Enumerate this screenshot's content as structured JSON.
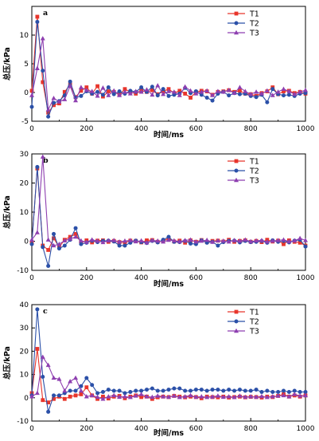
{
  "chart_data": [
    {
      "type": "line",
      "panel_label": "a",
      "xlabel": "时间/ms",
      "ylabel": "总压/kPa",
      "xlim": [
        0,
        1000
      ],
      "ylim": [
        -5,
        15
      ],
      "xticks": [
        0,
        200,
        400,
        600,
        800,
        1000
      ],
      "yticks": [
        -5,
        0,
        5,
        10
      ],
      "legend_position": "top-right",
      "series": [
        {
          "name": "T1",
          "color": "#e8352b",
          "marker": "square",
          "x": [
            0,
            20,
            40,
            60,
            80,
            100,
            120,
            140,
            160,
            180,
            200,
            220,
            240,
            260,
            280,
            300,
            320,
            340,
            360,
            380,
            400,
            420,
            440,
            460,
            480,
            500,
            520,
            540,
            560,
            580,
            600,
            620,
            640,
            660,
            680,
            700,
            720,
            740,
            760,
            780,
            800,
            820,
            840,
            860,
            880,
            900,
            920,
            940,
            960,
            980,
            1000
          ],
          "y": [
            0.3,
            13.2,
            1.8,
            -3.5,
            -2.2,
            -1.9,
            0.1,
            1.4,
            -0.8,
            0.3,
            0.9,
            -0.2,
            1.1,
            -0.7,
            0.2,
            0.1,
            -0.4,
            0.6,
            0.1,
            -0.2,
            0.3,
            0.1,
            0.4,
            -0.3,
            0.2,
            0.6,
            -0.1,
            0.3,
            -0.2,
            -0.9,
            0.1,
            0.3,
            0.2,
            -0.4,
            0.1,
            0.2,
            0.4,
            0.1,
            0.3,
            -0.2,
            -0.3,
            -0.6,
            -0.1,
            0.2,
            0.9,
            -0.3,
            0.2,
            0.3,
            -0.1,
            0.1,
            -0.2
          ]
        },
        {
          "name": "T2",
          "color": "#2b50a8",
          "marker": "circle",
          "x": [
            0,
            20,
            40,
            60,
            80,
            100,
            120,
            140,
            160,
            180,
            200,
            220,
            240,
            260,
            280,
            300,
            320,
            340,
            360,
            380,
            400,
            420,
            440,
            460,
            480,
            500,
            520,
            540,
            560,
            580,
            600,
            620,
            640,
            660,
            680,
            700,
            720,
            740,
            760,
            780,
            800,
            820,
            840,
            860,
            880,
            900,
            920,
            940,
            960,
            980,
            1000
          ],
          "y": [
            -2.5,
            12.3,
            3.8,
            -4.2,
            -1.8,
            -1.5,
            -0.5,
            1.9,
            -0.9,
            -0.6,
            0.2,
            -0.2,
            0.1,
            -0.4,
            0.9,
            -0.3,
            0.2,
            -0.2,
            0.3,
            0.1,
            0.9,
            0.1,
            1.0,
            -0.5,
            0.6,
            -0.6,
            -0.4,
            -0.2,
            0.8,
            -0.1,
            0.2,
            -0.4,
            -0.9,
            -1.4,
            -0.2,
            0.1,
            -0.5,
            -0.1,
            -0.3,
            -0.2,
            -0.6,
            -0.8,
            -0.4,
            -1.7,
            0.6,
            -0.3,
            -0.5,
            -0.4,
            -0.6,
            -0.2,
            -0.1
          ]
        },
        {
          "name": "T3",
          "color": "#8e3fb0",
          "marker": "triangle",
          "x": [
            0,
            20,
            40,
            60,
            80,
            100,
            120,
            140,
            160,
            180,
            200,
            220,
            240,
            260,
            280,
            300,
            320,
            340,
            360,
            380,
            400,
            420,
            440,
            460,
            480,
            500,
            520,
            540,
            560,
            580,
            600,
            620,
            640,
            660,
            680,
            700,
            720,
            740,
            760,
            780,
            800,
            820,
            840,
            860,
            880,
            900,
            920,
            940,
            960,
            980,
            1000
          ],
          "y": [
            -0.5,
            4.2,
            9.4,
            -3.0,
            -1.0,
            -1.6,
            -1.2,
            1.1,
            -1.4,
            0.9,
            0.4,
            0.2,
            -0.6,
            0.8,
            -0.5,
            0.3,
            -0.5,
            0.1,
            -0.2,
            0.2,
            0.1,
            0.5,
            -0.4,
            1.2,
            -0.3,
            0.2,
            0.1,
            -0.5,
            1.0,
            0.3,
            -0.2,
            0.1,
            0.3,
            -0.5,
            0.2,
            0.1,
            0.4,
            -0.1,
            0.9,
            0.2,
            -0.3,
            0.1,
            -0.2,
            0.3,
            -0.5,
            0.1,
            0.6,
            0.2,
            -0.3,
            0.1,
            0.4
          ]
        }
      ]
    },
    {
      "type": "line",
      "panel_label": "b",
      "xlabel": "时间/ms",
      "ylabel": "总压/kPa",
      "xlim": [
        0,
        1000
      ],
      "ylim": [
        -10,
        30
      ],
      "xticks": [
        0,
        200,
        400,
        600,
        800,
        1000
      ],
      "yticks": [
        -10,
        0,
        10,
        20,
        30
      ],
      "legend_position": "top-right",
      "series": [
        {
          "name": "T1",
          "color": "#e8352b",
          "marker": "square",
          "x": [
            0,
            20,
            40,
            60,
            80,
            100,
            120,
            140,
            160,
            180,
            200,
            220,
            240,
            260,
            280,
            300,
            320,
            340,
            360,
            380,
            400,
            420,
            440,
            460,
            480,
            500,
            520,
            540,
            560,
            580,
            600,
            620,
            640,
            660,
            680,
            700,
            720,
            740,
            760,
            780,
            800,
            820,
            840,
            860,
            880,
            900,
            920,
            940,
            960,
            980,
            1000
          ],
          "y": [
            -0.5,
            25.0,
            -1.5,
            -3.0,
            1.0,
            -2.0,
            0.5,
            1.5,
            2.5,
            -0.5,
            0.3,
            -0.4,
            0.2,
            0.3,
            -0.2,
            0.1,
            -0.3,
            -0.5,
            0.2,
            0.1,
            -0.4,
            0.3,
            0.4,
            -0.2,
            0.1,
            1.0,
            -0.1,
            0.2,
            -0.5,
            0.3,
            -0.2,
            0.4,
            -0.3,
            0.1,
            0.2,
            -0.1,
            0.5,
            -0.2,
            0.1,
            0.3,
            -0.2,
            0.1,
            -0.3,
            0.5,
            -0.1,
            0.2,
            -1.0,
            0.3,
            -0.2,
            -0.5,
            -1.5
          ]
        },
        {
          "name": "T2",
          "color": "#2b50a8",
          "marker": "circle",
          "x": [
            0,
            20,
            40,
            60,
            80,
            100,
            120,
            140,
            160,
            180,
            200,
            220,
            240,
            260,
            280,
            300,
            320,
            340,
            360,
            380,
            400,
            420,
            440,
            460,
            480,
            500,
            520,
            540,
            560,
            580,
            600,
            620,
            640,
            660,
            680,
            700,
            720,
            740,
            760,
            780,
            800,
            820,
            840,
            860,
            880,
            900,
            920,
            940,
            960,
            980,
            1000
          ],
          "y": [
            -1.0,
            25.5,
            -2.0,
            -8.5,
            2.5,
            -2.5,
            -1.5,
            0.5,
            4.5,
            -1.0,
            -0.5,
            0.2,
            -0.3,
            0.1,
            0.2,
            -0.1,
            -1.5,
            -1.5,
            -0.5,
            0.2,
            -0.3,
            -0.6,
            0.1,
            -0.4,
            0.5,
            1.5,
            -0.2,
            -0.3,
            0.1,
            -0.8,
            -1.0,
            0.3,
            -0.5,
            -0.2,
            -1.5,
            -0.3,
            0.1,
            0.2,
            -0.4,
            0.1,
            -0.3,
            -0.2,
            0.1,
            -0.5,
            0.3,
            -0.2,
            0.1,
            -0.4,
            0.2,
            0.5,
            -1.8
          ]
        },
        {
          "name": "T3",
          "color": "#8e3fb0",
          "marker": "triangle",
          "x": [
            0,
            20,
            40,
            60,
            80,
            100,
            120,
            140,
            160,
            180,
            200,
            220,
            240,
            260,
            280,
            300,
            320,
            340,
            360,
            380,
            400,
            420,
            440,
            460,
            480,
            500,
            520,
            540,
            560,
            580,
            600,
            620,
            640,
            660,
            680,
            700,
            720,
            740,
            760,
            780,
            800,
            820,
            840,
            860,
            880,
            900,
            920,
            940,
            960,
            980,
            1000
          ],
          "y": [
            0.5,
            3.0,
            29.0,
            0.5,
            -1.5,
            -1.0,
            0.2,
            0.8,
            1.5,
            0.2,
            -0.3,
            0.5,
            0.1,
            -0.4,
            0.2,
            0.3,
            -0.2,
            0.1,
            0.3,
            -0.1,
            0.2,
            -0.5,
            0.3,
            0.1,
            -0.2,
            0.4,
            0.2,
            -0.1,
            0.3,
            0.5,
            -0.2,
            0.1,
            0.4,
            -0.3,
            0.2,
            0.1,
            -0.2,
            0.3,
            0.1,
            0.5,
            -0.1,
            0.2,
            0.3,
            -0.2,
            0.1,
            0.3,
            0.5,
            -0.1,
            0.2,
            1.0,
            0.3
          ]
        }
      ]
    },
    {
      "type": "line",
      "panel_label": "c",
      "xlabel": "时间/ms",
      "ylabel": "总压/kPa",
      "xlim": [
        0,
        1000
      ],
      "ylim": [
        -10,
        40
      ],
      "xticks": [
        0,
        200,
        400,
        600,
        800,
        1000
      ],
      "yticks": [
        -10,
        0,
        10,
        20,
        30,
        40
      ],
      "legend_position": "top-right",
      "series": [
        {
          "name": "T1",
          "color": "#e8352b",
          "marker": "square",
          "x": [
            0,
            20,
            40,
            60,
            80,
            100,
            120,
            140,
            160,
            180,
            200,
            220,
            240,
            260,
            280,
            300,
            320,
            340,
            360,
            380,
            400,
            420,
            440,
            460,
            480,
            500,
            520,
            540,
            560,
            580,
            600,
            620,
            640,
            660,
            680,
            700,
            720,
            740,
            760,
            780,
            800,
            820,
            840,
            860,
            880,
            900,
            920,
            940,
            960,
            980,
            1000
          ],
          "y": [
            2.0,
            21.0,
            -1.0,
            -2.0,
            -0.5,
            0.5,
            -0.5,
            0.5,
            1.0,
            1.5,
            4.5,
            1.0,
            -0.5,
            0.5,
            -0.3,
            0.5,
            0.8,
            -0.2,
            0.5,
            1.0,
            0.3,
            0.5,
            -0.5,
            0.2,
            0.5,
            0.3,
            0.8,
            0.5,
            0.2,
            0.5,
            0.3,
            -0.2,
            0.5,
            0.3,
            0.2,
            0.5,
            0.1,
            0.3,
            0.5,
            0.2,
            0.4,
            0.3,
            0.1,
            0.5,
            0.3,
            0.8,
            1.5,
            0.5,
            1.0,
            0.5,
            1.0
          ]
        },
        {
          "name": "T2",
          "color": "#2b50a8",
          "marker": "circle",
          "x": [
            0,
            20,
            40,
            60,
            80,
            100,
            120,
            140,
            160,
            180,
            200,
            220,
            240,
            260,
            280,
            300,
            320,
            340,
            360,
            380,
            400,
            420,
            440,
            460,
            480,
            500,
            520,
            540,
            560,
            580,
            600,
            620,
            640,
            660,
            680,
            700,
            720,
            740,
            760,
            780,
            800,
            820,
            840,
            860,
            880,
            900,
            920,
            940,
            960,
            980,
            1000
          ],
          "y": [
            1.0,
            38.0,
            9.0,
            -6.0,
            1.0,
            1.0,
            2.0,
            3.0,
            3.0,
            5.0,
            8.5,
            5.5,
            2.0,
            2.5,
            3.5,
            3.0,
            3.0,
            2.0,
            2.5,
            3.0,
            3.0,
            3.5,
            4.0,
            3.0,
            3.0,
            3.5,
            4.0,
            4.0,
            3.0,
            3.0,
            3.5,
            3.5,
            3.0,
            3.5,
            3.5,
            3.0,
            3.5,
            3.0,
            3.5,
            3.0,
            3.0,
            3.5,
            2.5,
            3.0,
            2.5,
            2.5,
            3.0,
            2.5,
            3.0,
            2.5,
            2.5
          ]
        },
        {
          "name": "T3",
          "color": "#8e3fb0",
          "marker": "triangle",
          "x": [
            0,
            20,
            40,
            60,
            80,
            100,
            120,
            140,
            160,
            180,
            200,
            220,
            240,
            260,
            280,
            300,
            320,
            340,
            360,
            380,
            400,
            420,
            440,
            460,
            480,
            500,
            520,
            540,
            560,
            580,
            600,
            620,
            640,
            660,
            680,
            700,
            720,
            740,
            760,
            780,
            800,
            820,
            840,
            860,
            880,
            900,
            920,
            940,
            960,
            980,
            1000
          ],
          "y": [
            0.5,
            2.0,
            17.5,
            14.0,
            8.5,
            8.0,
            3.0,
            7.0,
            8.5,
            3.0,
            0.5,
            1.0,
            0.3,
            -0.5,
            0.5,
            1.0,
            0.3,
            0.5,
            0.2,
            0.8,
            1.5,
            0.5,
            0.3,
            0.8,
            0.5,
            0.3,
            0.8,
            0.2,
            0.5,
            1.0,
            0.3,
            0.5,
            0.2,
            0.4,
            0.8,
            0.3,
            0.5,
            0.2,
            0.8,
            0.3,
            0.5,
            0.3,
            0.6,
            0.2,
            0.5,
            0.8,
            1.0,
            0.5,
            1.5,
            0.8,
            1.0
          ]
        }
      ]
    }
  ]
}
